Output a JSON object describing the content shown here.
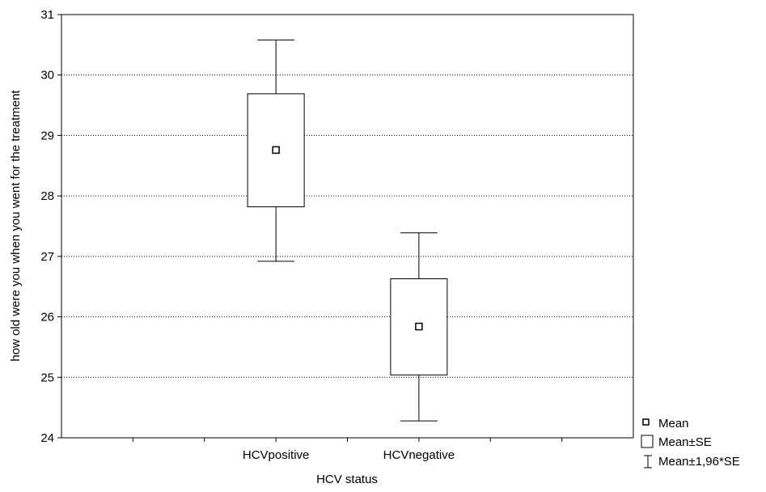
{
  "chart_data": {
    "type": "box",
    "categories": [
      "HCVpositive",
      "HCVnegative"
    ],
    "series": [
      {
        "stats": [
          {
            "mean": 28.76,
            "se_low": 27.82,
            "se_high": 29.69,
            "ci_low": 26.92,
            "ci_high": 30.58
          },
          {
            "mean": 25.84,
            "se_low": 25.04,
            "se_high": 26.63,
            "ci_low": 24.28,
            "ci_high": 27.39
          }
        ]
      }
    ],
    "xlabel": "HCV status",
    "ylabel": "how old were you when you went for the treatment",
    "ylim": [
      24,
      31
    ],
    "yticks": [
      "24",
      "25",
      "26",
      "27",
      "28",
      "29",
      "30",
      "31"
    ],
    "grid": "horizontal dotted",
    "legend": {
      "position": "bottom-right",
      "entries": [
        {
          "symbol": "small-square-icon",
          "label": "Mean"
        },
        {
          "symbol": "rectangle-icon",
          "label": "Mean±SE"
        },
        {
          "symbol": "whisker-icon",
          "label": "Mean±1,96*SE"
        }
      ]
    }
  }
}
